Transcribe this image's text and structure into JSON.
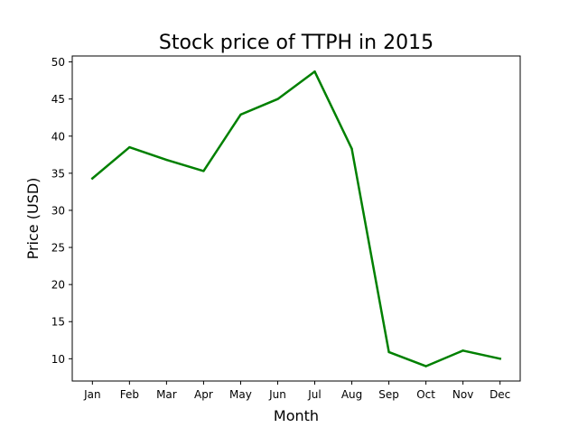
{
  "chart_data": {
    "type": "line",
    "title": "Stock price of TTPH in 2015",
    "xlabel": "Month",
    "ylabel": "Price (USD)",
    "categories": [
      "Jan",
      "Feb",
      "Mar",
      "Apr",
      "May",
      "Jun",
      "Jul",
      "Aug",
      "Sep",
      "Oct",
      "Nov",
      "Dec"
    ],
    "series": [
      {
        "values": [
          34.3,
          38.5,
          36.8,
          35.3,
          42.9,
          45.0,
          48.7,
          38.3,
          10.9,
          9.0,
          11.1,
          10.0
        ],
        "color": "#008000"
      }
    ],
    "ylim": [
      7.0,
      50.8
    ],
    "yticks": [
      10,
      15,
      20,
      25,
      30,
      35,
      40,
      45,
      50
    ],
    "grid": false,
    "legend": "none"
  }
}
